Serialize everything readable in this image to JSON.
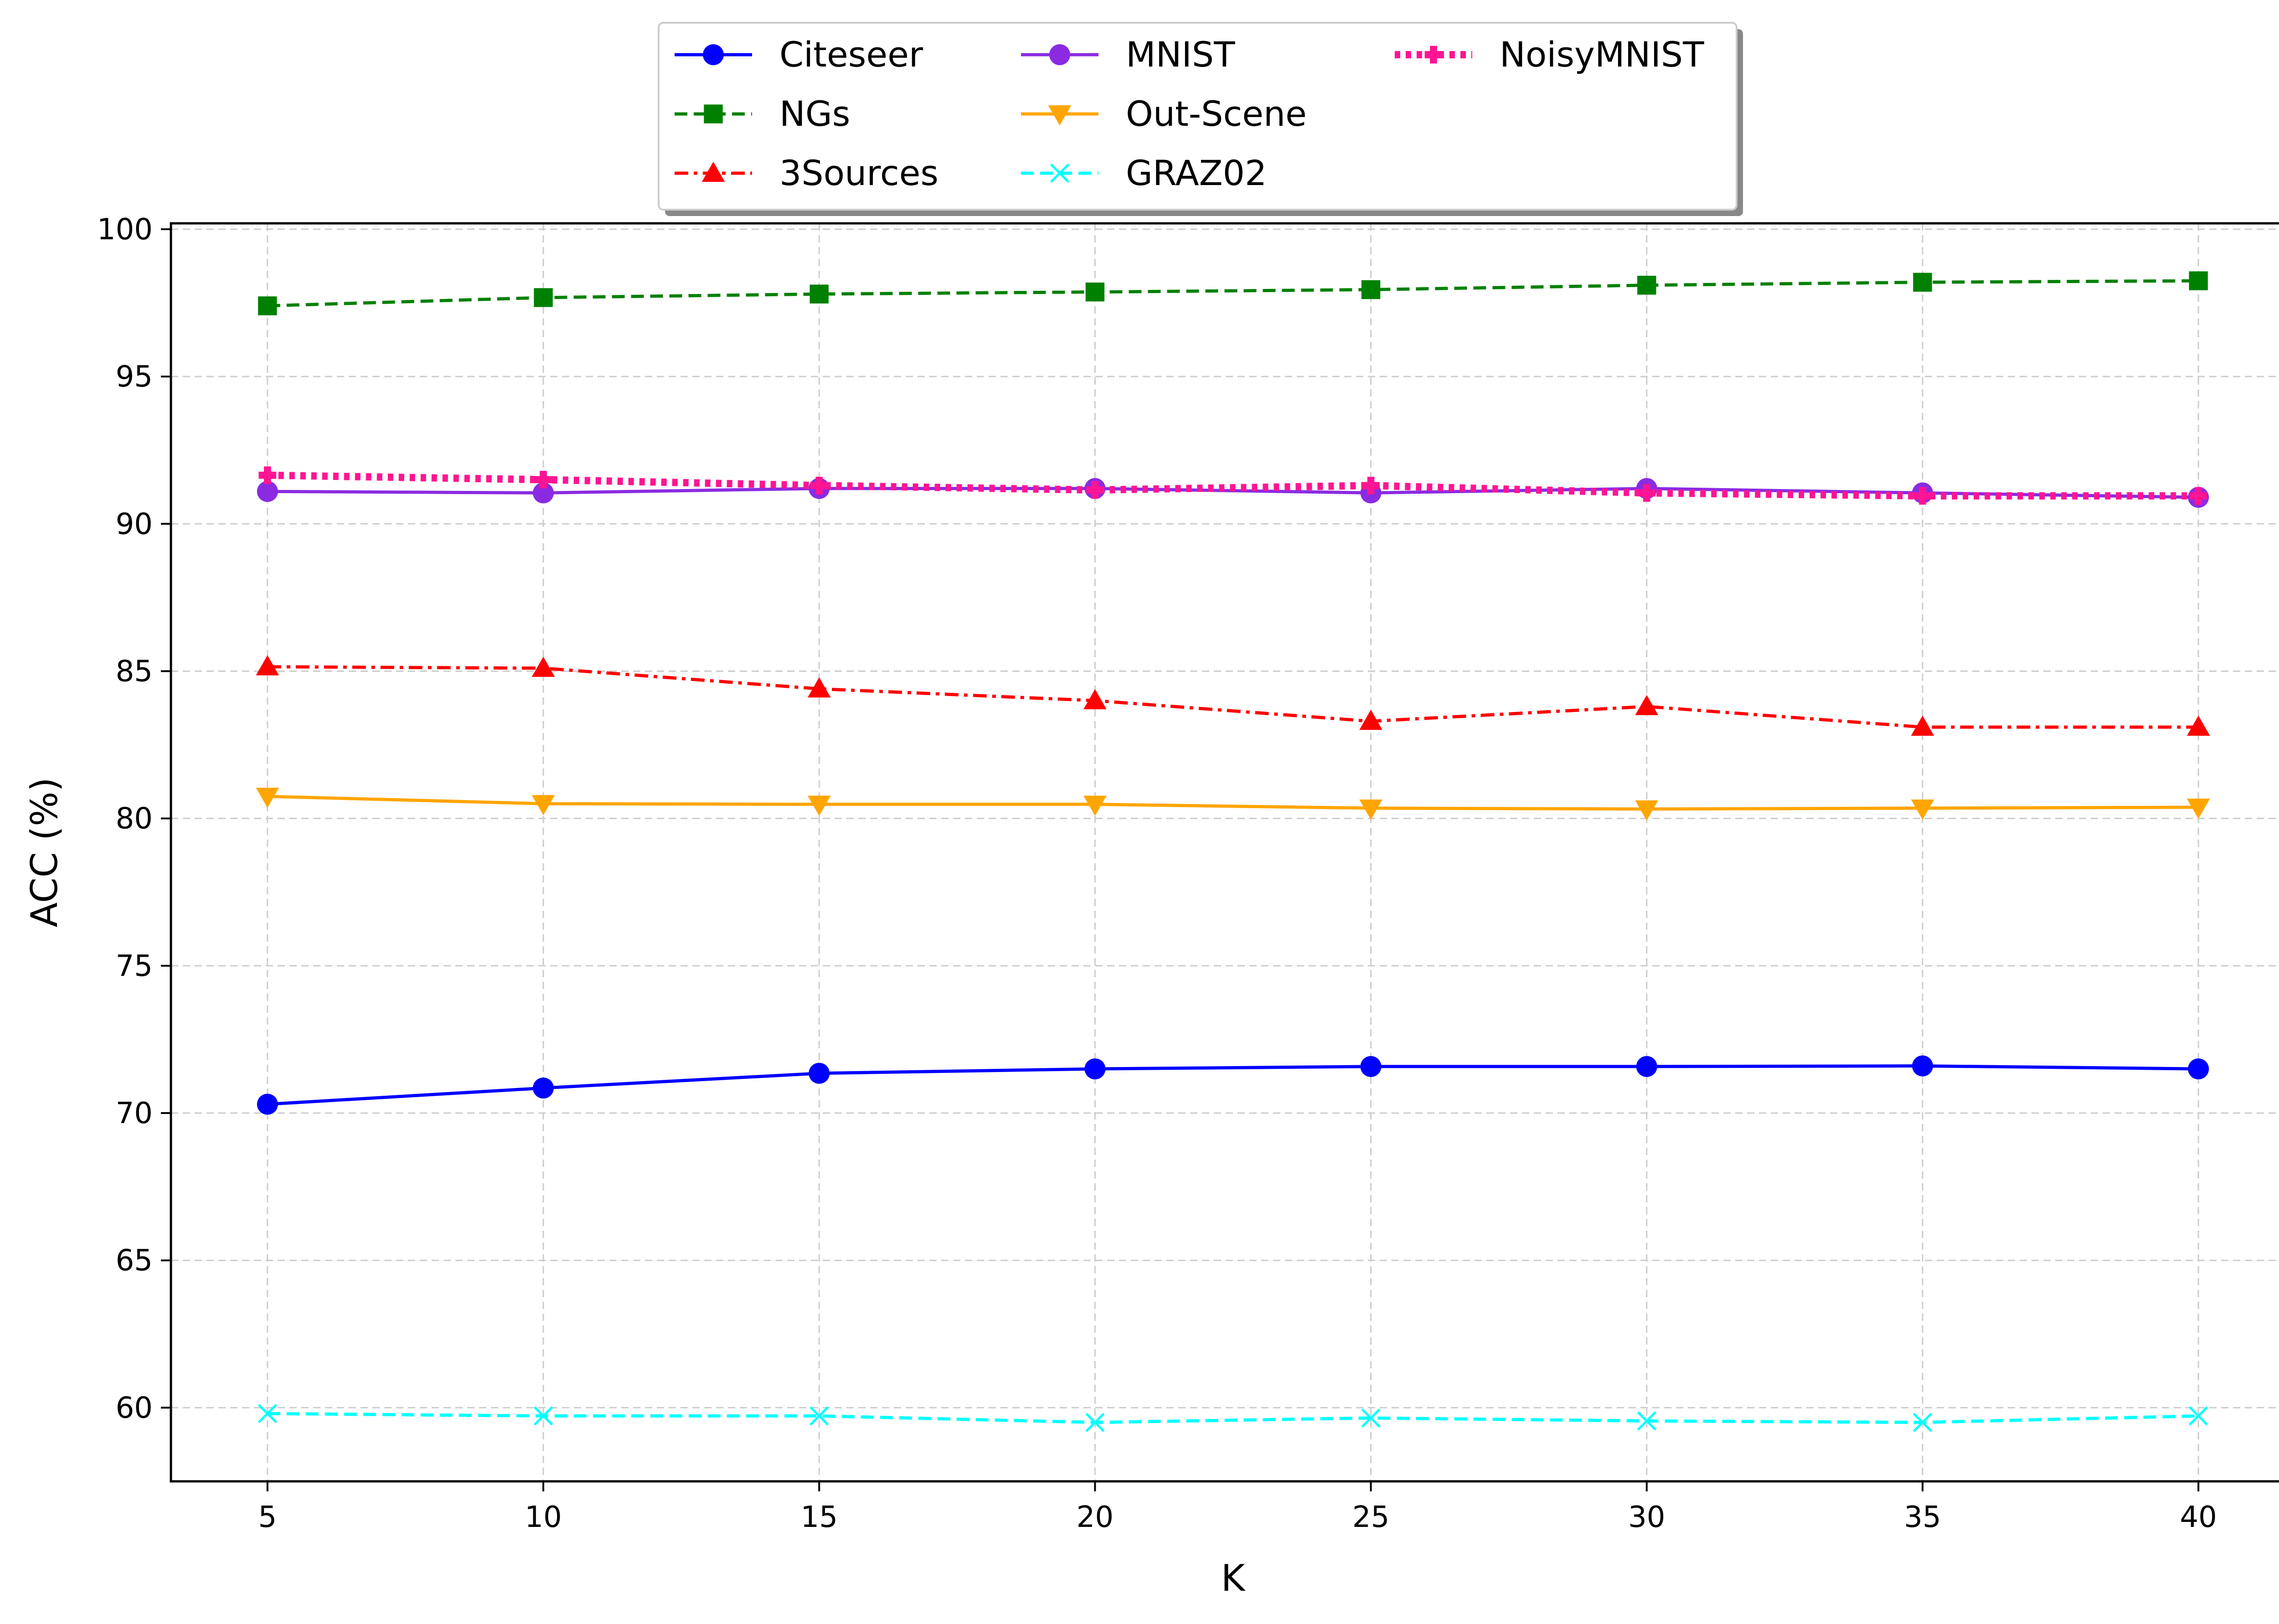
{
  "chart_data": {
    "type": "line",
    "title": "",
    "xlabel": "K",
    "ylabel": "ACC (%)",
    "x": [
      5,
      10,
      15,
      20,
      25,
      30,
      35,
      40
    ],
    "xticks": [
      "5",
      "10",
      "15",
      "20",
      "25",
      "30",
      "35",
      "40"
    ],
    "yticks": [
      "60",
      "65",
      "70",
      "75",
      "80",
      "85",
      "90",
      "95",
      "100"
    ],
    "xlim": [
      3.25,
      41.75
    ],
    "ylim": [
      57.5,
      100.2
    ],
    "grid": true,
    "legend_position": "top-center",
    "series": [
      {
        "name": "Citeseer",
        "color": "#0000ff",
        "marker": "circle",
        "dash": "solid",
        "values": [
          70.3,
          70.85,
          71.35,
          71.5,
          71.58,
          71.58,
          71.6,
          71.5
        ]
      },
      {
        "name": "NGs",
        "color": "#008000",
        "marker": "square",
        "dash": "dashed",
        "values": [
          97.4,
          97.68,
          97.8,
          97.87,
          97.95,
          98.1,
          98.2,
          98.25
        ]
      },
      {
        "name": "3Sources",
        "color": "#ff0000",
        "marker": "triangle-up",
        "dash": "dashdot",
        "values": [
          85.15,
          85.1,
          84.4,
          84.0,
          83.3,
          83.8,
          83.1,
          83.1
        ]
      },
      {
        "name": "MNIST",
        "color": "#8a2be2",
        "marker": "circle",
        "dash": "solid",
        "values": [
          91.1,
          91.05,
          91.2,
          91.2,
          91.05,
          91.2,
          91.05,
          90.9
        ]
      },
      {
        "name": "Out-Scene",
        "color": "#ffa500",
        "marker": "triangle-down",
        "dash": "solid",
        "values": [
          80.75,
          80.5,
          80.48,
          80.48,
          80.35,
          80.32,
          80.35,
          80.38
        ]
      },
      {
        "name": "GRAZ02",
        "color": "#00ffff",
        "marker": "x",
        "dash": "dashed",
        "values": [
          59.8,
          59.72,
          59.72,
          59.5,
          59.65,
          59.55,
          59.5,
          59.72
        ]
      },
      {
        "name": "NoisyMNIST",
        "color": "#ff1493",
        "marker": "plus",
        "dash": "dotted",
        "values": [
          91.65,
          91.5,
          91.3,
          91.15,
          91.3,
          91.05,
          90.95,
          90.95
        ]
      }
    ]
  }
}
